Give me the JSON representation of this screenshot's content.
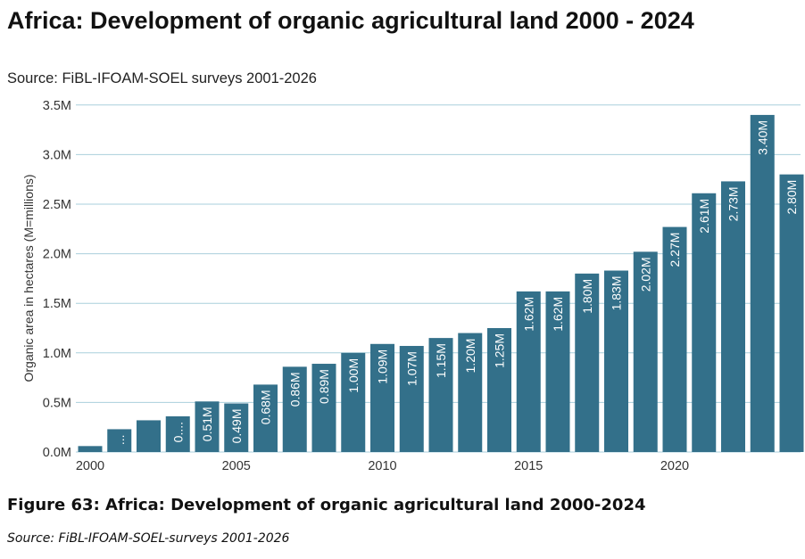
{
  "chart_data": {
    "type": "bar",
    "title": "Africa: Development of organic agricultural land 2000 - 2024",
    "subtitle": "Source: FiBL-IFOAM-SOEL surveys 2001-2026",
    "ylabel": "Organic area in hectares (M=millions)",
    "xlabel": "",
    "ylim": [
      0,
      3.5
    ],
    "y_ticks": [
      "0.0M",
      "0.5M",
      "1.0M",
      "1.5M",
      "2.0M",
      "2.5M",
      "3.0M",
      "3.5M"
    ],
    "x_ticks": [
      "2000",
      "2005",
      "2010",
      "2015",
      "2020"
    ],
    "grid": "horizontal",
    "bar_color": "#33708a",
    "grid_color": "#a9cfdc",
    "categories": [
      2000,
      2001,
      2002,
      2003,
      2004,
      2005,
      2006,
      2007,
      2008,
      2009,
      2010,
      2011,
      2012,
      2013,
      2014,
      2015,
      2016,
      2017,
      2018,
      2019,
      2020,
      2021,
      2022,
      2023,
      2024
    ],
    "values": [
      0.06,
      0.23,
      0.32,
      0.36,
      0.51,
      0.49,
      0.68,
      0.86,
      0.89,
      1.0,
      1.09,
      1.07,
      1.15,
      1.2,
      1.25,
      1.62,
      1.62,
      1.8,
      1.83,
      2.02,
      2.27,
      2.61,
      2.73,
      3.4,
      2.8
    ],
    "data_labels": [
      "",
      "...",
      "",
      "0....",
      "0.51M",
      "0.49M",
      "0.68M",
      "0.86M",
      "0.89M",
      "1.00M",
      "1.09M",
      "1.07M",
      "1.15M",
      "1.20M",
      "1.25M",
      "1.62M",
      "1.62M",
      "1.80M",
      "1.83M",
      "2.02M",
      "2.27M",
      "2.61M",
      "2.73M",
      "3.40M",
      "2.80M"
    ]
  },
  "caption": "Figure 63: Africa: Development of organic agricultural land 2000-2024",
  "caption_source": "Source: FiBL-IFOAM-SOEL-surveys 2001-2026"
}
